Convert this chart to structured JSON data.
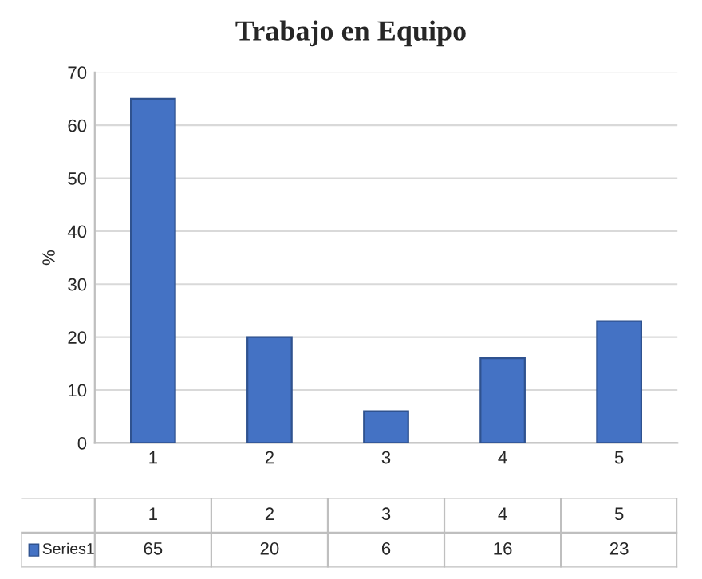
{
  "chart_data": {
    "type": "bar",
    "title": "Trabajo en Equipo",
    "ylabel": "%",
    "categories": [
      "1",
      "2",
      "3",
      "4",
      "5"
    ],
    "series": [
      {
        "name": "Series1",
        "color": "#4472c4",
        "values": [
          65,
          20,
          6,
          16,
          23
        ]
      }
    ],
    "ylim": [
      0,
      70
    ],
    "yticks": [
      0,
      10,
      20,
      30,
      40,
      50,
      60,
      70
    ],
    "grid": "y",
    "data_labels": true,
    "legend": "bottom"
  }
}
